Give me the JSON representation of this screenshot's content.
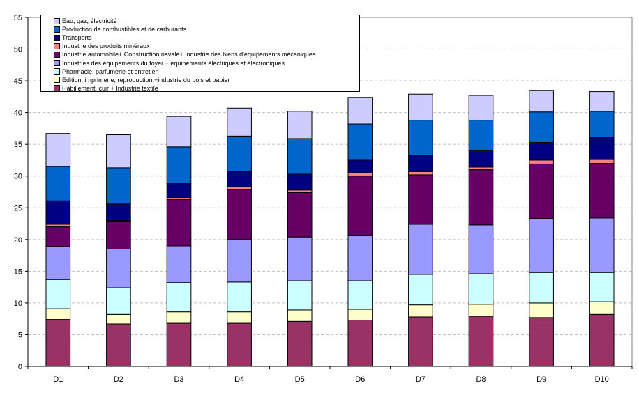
{
  "chart_data": {
    "type": "bar",
    "stacked": true,
    "title": "",
    "xlabel": "",
    "ylabel": "",
    "ylim": [
      0,
      55
    ],
    "yticks": [
      0,
      5,
      10,
      15,
      20,
      25,
      30,
      35,
      40,
      45,
      50,
      55
    ],
    "grid": true,
    "legend_position": "top-left",
    "categories": [
      "D1",
      "D2",
      "D3",
      "D4",
      "D5",
      "D6",
      "D7",
      "D8",
      "D9",
      "D10"
    ],
    "series": [
      {
        "name": "Habillement, cuir + Industrie textile",
        "color": "#993366",
        "values": [
          7.4,
          6.7,
          6.8,
          6.8,
          7.1,
          7.3,
          7.8,
          7.9,
          7.7,
          8.2
        ]
      },
      {
        "name": "Edition, imprimerie, reproduction +industrie du bois et papier",
        "color": "#FFFFCC",
        "values": [
          1.7,
          1.5,
          1.8,
          1.8,
          1.8,
          1.7,
          1.9,
          1.9,
          2.3,
          2.0
        ]
      },
      {
        "name": "Pharmacie, parfumerie et entretien",
        "color": "#CCFFFF",
        "values": [
          4.6,
          4.2,
          4.6,
          4.7,
          4.6,
          4.5,
          4.8,
          4.8,
          4.8,
          4.6
        ]
      },
      {
        "name": "Industries des équipements du foyer + équipements électriques et électroniques",
        "color": "#9999FF",
        "values": [
          5.2,
          6.1,
          5.8,
          6.7,
          6.9,
          7.1,
          7.9,
          7.7,
          8.5,
          8.6
        ]
      },
      {
        "name": "Industrie automobile+ Construction navale+ Industrie des biens d'équipements mécaniques",
        "color": "#660066",
        "values": [
          3.1,
          4.3,
          7.3,
          7.9,
          7.0,
          9.4,
          7.8,
          8.7,
          8.6,
          8.6
        ]
      },
      {
        "name": "Industrie des produits minéraux",
        "color": "#FF8080",
        "values": [
          0.4,
          0.2,
          0.3,
          0.4,
          0.4,
          0.5,
          0.5,
          0.4,
          0.6,
          0.6
        ]
      },
      {
        "name": "Transports",
        "color": "#000080",
        "values": [
          3.7,
          2.6,
          2.2,
          2.4,
          2.5,
          2.0,
          2.5,
          2.6,
          2.8,
          3.5
        ]
      },
      {
        "name": "Production de combustibles et de carburants",
        "color": "#0066CC",
        "values": [
          5.4,
          5.7,
          5.8,
          5.6,
          5.6,
          5.7,
          5.6,
          4.8,
          4.8,
          4.1
        ]
      },
      {
        "name": "Eau, gaz, électricité",
        "color": "#CCCCFF",
        "values": [
          5.2,
          5.2,
          4.8,
          4.4,
          4.3,
          4.2,
          4.1,
          3.9,
          3.4,
          3.1
        ]
      }
    ]
  },
  "legend": {
    "items": [
      {
        "label": "Eau, gaz, électricité",
        "color": "#CCCCFF"
      },
      {
        "label": "Production de combustibles et de carburants",
        "color": "#0066CC"
      },
      {
        "label": "Transports",
        "color": "#000080"
      },
      {
        "label": "Industrie des produits minéraux",
        "color": "#FF8080"
      },
      {
        "label": "Industrie automobile+ Construction navale+ Industrie des biens d'équipements mécaniques",
        "color": "#660066"
      },
      {
        "label": "Industries des équipements du foyer + équipements électriques et électroniques",
        "color": "#9999FF"
      },
      {
        "label": "Pharmacie, parfumerie et entretien",
        "color": "#CCFFFF"
      },
      {
        "label": "Edition, imprimerie, reproduction +industrie du bois et papier",
        "color": "#FFFFCC"
      },
      {
        "label": "Habillement, cuir + Industrie textile",
        "color": "#993366"
      }
    ]
  }
}
